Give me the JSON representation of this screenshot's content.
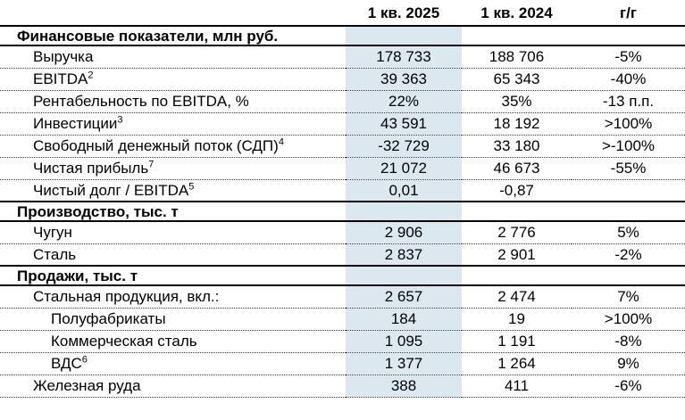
{
  "colors": {
    "highlight": "#DCE8F0",
    "line": "#000000",
    "text": "#000000"
  },
  "columns": {
    "metric": "",
    "q1_2025": "1 кв. 2025",
    "q1_2024": "1 кв. 2024",
    "yoy": "г/г"
  },
  "sections": [
    {
      "title": "Финансовые показатели, млн руб.",
      "rows": [
        {
          "label": "Выручка",
          "sup": "",
          "indent": 1,
          "q1_2025": "178 733",
          "q1_2024": "188 706",
          "yoy": "-5%"
        },
        {
          "label": "EBITDA",
          "sup": "2",
          "indent": 1,
          "q1_2025": "39 363",
          "q1_2024": "65 343",
          "yoy": "-40%"
        },
        {
          "label": "Рентабельность по EBITDA, %",
          "sup": "",
          "indent": 1,
          "q1_2025": "22%",
          "q1_2024": "35%",
          "yoy": "-13 п.п."
        },
        {
          "label": "Инвестиции",
          "sup": "3",
          "indent": 1,
          "q1_2025": "43 591",
          "q1_2024": "18 192",
          "yoy": ">100%"
        },
        {
          "label": "Свободный денежный поток (СДП)",
          "sup": "4",
          "indent": 1,
          "q1_2025": "-32 729",
          "q1_2024": "33 180",
          "yoy": ">-100%"
        },
        {
          "label": "Чистая прибыль",
          "sup": "7",
          "indent": 1,
          "q1_2025": "21 072",
          "q1_2024": "46 673",
          "yoy": "-55%"
        },
        {
          "label": "Чистый долг / EBITDA",
          "sup": "5",
          "indent": 1,
          "q1_2025": "0,01",
          "q1_2024": "-0,87",
          "yoy": ""
        }
      ]
    },
    {
      "title": "Производство, тыс. т",
      "rows": [
        {
          "label": "Чугун",
          "sup": "",
          "indent": 1,
          "q1_2025": "2 906",
          "q1_2024": "2 776",
          "yoy": "5%"
        },
        {
          "label": "Сталь",
          "sup": "",
          "indent": 1,
          "q1_2025": "2 837",
          "q1_2024": "2 901",
          "yoy": "-2%"
        }
      ]
    },
    {
      "title": "Продажи, тыс. т",
      "rows": [
        {
          "label": "Стальная продукция, вкл.:",
          "sup": "",
          "indent": 1,
          "q1_2025": "2 657",
          "q1_2024": "2 474",
          "yoy": "7%"
        },
        {
          "label": "Полуфабрикаты",
          "sup": "",
          "indent": 2,
          "q1_2025": "184",
          "q1_2024": "19",
          "yoy": ">100%"
        },
        {
          "label": "Коммерческая сталь",
          "sup": "",
          "indent": 2,
          "q1_2025": "1 095",
          "q1_2024": "1 191",
          "yoy": "-8%"
        },
        {
          "label": "ВДС",
          "sup": "6",
          "indent": 2,
          "q1_2025": "1 377",
          "q1_2024": "1 264",
          "yoy": "9%"
        },
        {
          "label": "Железная руда",
          "sup": "",
          "indent": 1,
          "q1_2025": "388",
          "q1_2024": "411",
          "yoy": "-6%"
        }
      ]
    }
  ]
}
